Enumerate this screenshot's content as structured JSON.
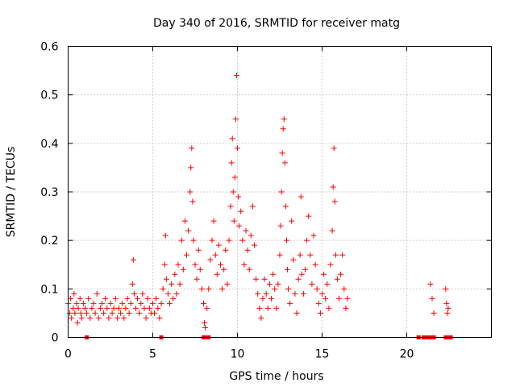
{
  "chart_data": {
    "type": "scatter",
    "title": "Day 340 of 2016, SRMTID for receiver matg",
    "xlabel": "GPS time / hours",
    "ylabel": "SRMTID / TECUs",
    "xlim": [
      0,
      25
    ],
    "ylim": [
      0,
      0.6
    ],
    "xticks": [
      0,
      5,
      10,
      15,
      20
    ],
    "yticks": [
      0,
      0.1,
      0.2,
      0.3,
      0.4,
      0.5,
      0.6
    ],
    "xtick_labels": [
      "0",
      "5",
      "10",
      "15",
      "20"
    ],
    "ytick_labels": [
      "0",
      "0.1",
      "0.2",
      "0.3",
      "0.4",
      "0.5",
      "0.6"
    ],
    "grid": true,
    "marker": "+",
    "color": "#ff0000",
    "series": [
      {
        "name": "matg",
        "points": [
          [
            0.0,
            0.07
          ],
          [
            0.1,
            0.05
          ],
          [
            0.15,
            0.08
          ],
          [
            0.2,
            0.04
          ],
          [
            0.3,
            0.06
          ],
          [
            0.35,
            0.09
          ],
          [
            0.4,
            0.05
          ],
          [
            0.5,
            0.07
          ],
          [
            0.55,
            0.03
          ],
          [
            0.6,
            0.06
          ],
          [
            0.7,
            0.08
          ],
          [
            0.75,
            0.05
          ],
          [
            0.8,
            0.04
          ],
          [
            0.9,
            0.07
          ],
          [
            1.0,
            0.06
          ],
          [
            1.1,
            0.05
          ],
          [
            1.2,
            0.08
          ],
          [
            1.3,
            0.04
          ],
          [
            1.4,
            0.06
          ],
          [
            1.5,
            0.07
          ],
          [
            1.6,
            0.05
          ],
          [
            1.7,
            0.09
          ],
          [
            1.8,
            0.04
          ],
          [
            1.9,
            0.06
          ],
          [
            2.0,
            0.07
          ],
          [
            2.1,
            0.05
          ],
          [
            2.2,
            0.08
          ],
          [
            2.3,
            0.06
          ],
          [
            2.4,
            0.04
          ],
          [
            2.5,
            0.07
          ],
          [
            2.6,
            0.05
          ],
          [
            2.7,
            0.06
          ],
          [
            2.8,
            0.08
          ],
          [
            2.9,
            0.04
          ],
          [
            3.0,
            0.06
          ],
          [
            3.1,
            0.05
          ],
          [
            3.2,
            0.07
          ],
          [
            3.3,
            0.04
          ],
          [
            3.4,
            0.06
          ],
          [
            3.5,
            0.08
          ],
          [
            3.6,
            0.05
          ],
          [
            3.7,
            0.07
          ],
          [
            3.8,
            0.11
          ],
          [
            3.85,
            0.16
          ],
          [
            3.9,
            0.09
          ],
          [
            4.0,
            0.06
          ],
          [
            4.1,
            0.08
          ],
          [
            4.2,
            0.05
          ],
          [
            4.3,
            0.07
          ],
          [
            4.4,
            0.09
          ],
          [
            4.5,
            0.06
          ],
          [
            4.6,
            0.04
          ],
          [
            4.7,
            0.08
          ],
          [
            4.8,
            0.06
          ],
          [
            4.9,
            0.05
          ],
          [
            5.0,
            0.07
          ],
          [
            5.1,
            0.05
          ],
          [
            5.2,
            0.08
          ],
          [
            5.3,
            0.06
          ],
          [
            5.4,
            0.04
          ],
          [
            5.5,
            0.07
          ],
          [
            5.6,
            0.1
          ],
          [
            5.7,
            0.15
          ],
          [
            5.75,
            0.21
          ],
          [
            5.8,
            0.12
          ],
          [
            5.9,
            0.09
          ],
          [
            6.0,
            0.07
          ],
          [
            6.1,
            0.11
          ],
          [
            6.2,
            0.08
          ],
          [
            6.3,
            0.13
          ],
          [
            6.4,
            0.09
          ],
          [
            6.5,
            0.15
          ],
          [
            6.6,
            0.11
          ],
          [
            6.7,
            0.2
          ],
          [
            6.8,
            0.14
          ],
          [
            6.9,
            0.24
          ],
          [
            7.0,
            0.17
          ],
          [
            7.1,
            0.22
          ],
          [
            7.2,
            0.3
          ],
          [
            7.25,
            0.35
          ],
          [
            7.3,
            0.39
          ],
          [
            7.35,
            0.28
          ],
          [
            7.4,
            0.2
          ],
          [
            7.5,
            0.15
          ],
          [
            7.6,
            0.12
          ],
          [
            7.7,
            0.18
          ],
          [
            7.8,
            0.14
          ],
          [
            7.9,
            0.1
          ],
          [
            8.0,
            0.07
          ],
          [
            8.05,
            0.03
          ],
          [
            8.1,
            0.02
          ],
          [
            8.2,
            0.06
          ],
          [
            8.3,
            0.1
          ],
          [
            8.4,
            0.16
          ],
          [
            8.5,
            0.2
          ],
          [
            8.6,
            0.24
          ],
          [
            8.7,
            0.17
          ],
          [
            8.8,
            0.13
          ],
          [
            8.9,
            0.19
          ],
          [
            9.0,
            0.15
          ],
          [
            9.1,
            0.1
          ],
          [
            9.2,
            0.14
          ],
          [
            9.3,
            0.18
          ],
          [
            9.4,
            0.11
          ],
          [
            9.5,
            0.2
          ],
          [
            9.6,
            0.27
          ],
          [
            9.65,
            0.36
          ],
          [
            9.7,
            0.41
          ],
          [
            9.75,
            0.3
          ],
          [
            9.8,
            0.24
          ],
          [
            9.85,
            0.33
          ],
          [
            9.9,
            0.45
          ],
          [
            9.95,
            0.54
          ],
          [
            10.0,
            0.39
          ],
          [
            10.05,
            0.29
          ],
          [
            10.1,
            0.23
          ],
          [
            10.2,
            0.26
          ],
          [
            10.3,
            0.2
          ],
          [
            10.4,
            0.15
          ],
          [
            10.5,
            0.22
          ],
          [
            10.6,
            0.18
          ],
          [
            10.7,
            0.14
          ],
          [
            10.8,
            0.21
          ],
          [
            10.9,
            0.27
          ],
          [
            11.0,
            0.19
          ],
          [
            11.1,
            0.12
          ],
          [
            11.2,
            0.09
          ],
          [
            11.3,
            0.06
          ],
          [
            11.4,
            0.04
          ],
          [
            11.5,
            0.08
          ],
          [
            11.6,
            0.12
          ],
          [
            11.7,
            0.09
          ],
          [
            11.8,
            0.06
          ],
          [
            11.9,
            0.11
          ],
          [
            12.0,
            0.08
          ],
          [
            12.1,
            0.13
          ],
          [
            12.2,
            0.1
          ],
          [
            12.3,
            0.06
          ],
          [
            12.4,
            0.11
          ],
          [
            12.5,
            0.17
          ],
          [
            12.55,
            0.23
          ],
          [
            12.6,
            0.3
          ],
          [
            12.65,
            0.38
          ],
          [
            12.7,
            0.43
          ],
          [
            12.75,
            0.45
          ],
          [
            12.8,
            0.36
          ],
          [
            12.85,
            0.27
          ],
          [
            12.9,
            0.2
          ],
          [
            12.95,
            0.14
          ],
          [
            13.0,
            0.1
          ],
          [
            13.1,
            0.07
          ],
          [
            13.2,
            0.24
          ],
          [
            13.3,
            0.16
          ],
          [
            13.4,
            0.09
          ],
          [
            13.5,
            0.05
          ],
          [
            13.6,
            0.12
          ],
          [
            13.7,
            0.17
          ],
          [
            13.75,
            0.29
          ],
          [
            13.8,
            0.13
          ],
          [
            13.9,
            0.09
          ],
          [
            14.0,
            0.14
          ],
          [
            14.1,
            0.2
          ],
          [
            14.2,
            0.25
          ],
          [
            14.3,
            0.17
          ],
          [
            14.4,
            0.11
          ],
          [
            14.5,
            0.21
          ],
          [
            14.6,
            0.15
          ],
          [
            14.7,
            0.1
          ],
          [
            14.8,
            0.07
          ],
          [
            14.9,
            0.05
          ],
          [
            15.0,
            0.09
          ],
          [
            15.1,
            0.13
          ],
          [
            15.2,
            0.08
          ],
          [
            15.3,
            0.11
          ],
          [
            15.4,
            0.06
          ],
          [
            15.5,
            0.15
          ],
          [
            15.6,
            0.22
          ],
          [
            15.65,
            0.31
          ],
          [
            15.7,
            0.39
          ],
          [
            15.75,
            0.28
          ],
          [
            15.8,
            0.17
          ],
          [
            15.9,
            0.12
          ],
          [
            16.0,
            0.08
          ],
          [
            16.1,
            0.13
          ],
          [
            16.2,
            0.17
          ],
          [
            16.3,
            0.1
          ],
          [
            16.4,
            0.06
          ],
          [
            16.5,
            0.08
          ],
          [
            21.4,
            0.11
          ],
          [
            21.5,
            0.08
          ],
          [
            21.6,
            0.05
          ],
          [
            22.3,
            0.1
          ],
          [
            22.35,
            0.07
          ],
          [
            22.4,
            0.05
          ],
          [
            22.45,
            0.06
          ]
        ]
      }
    ],
    "zero_points": [
      1.1,
      5.5,
      8.0,
      8.1,
      8.2,
      8.3,
      20.7,
      21.0,
      21.2,
      21.4,
      21.6,
      22.3,
      22.5,
      22.6
    ]
  }
}
